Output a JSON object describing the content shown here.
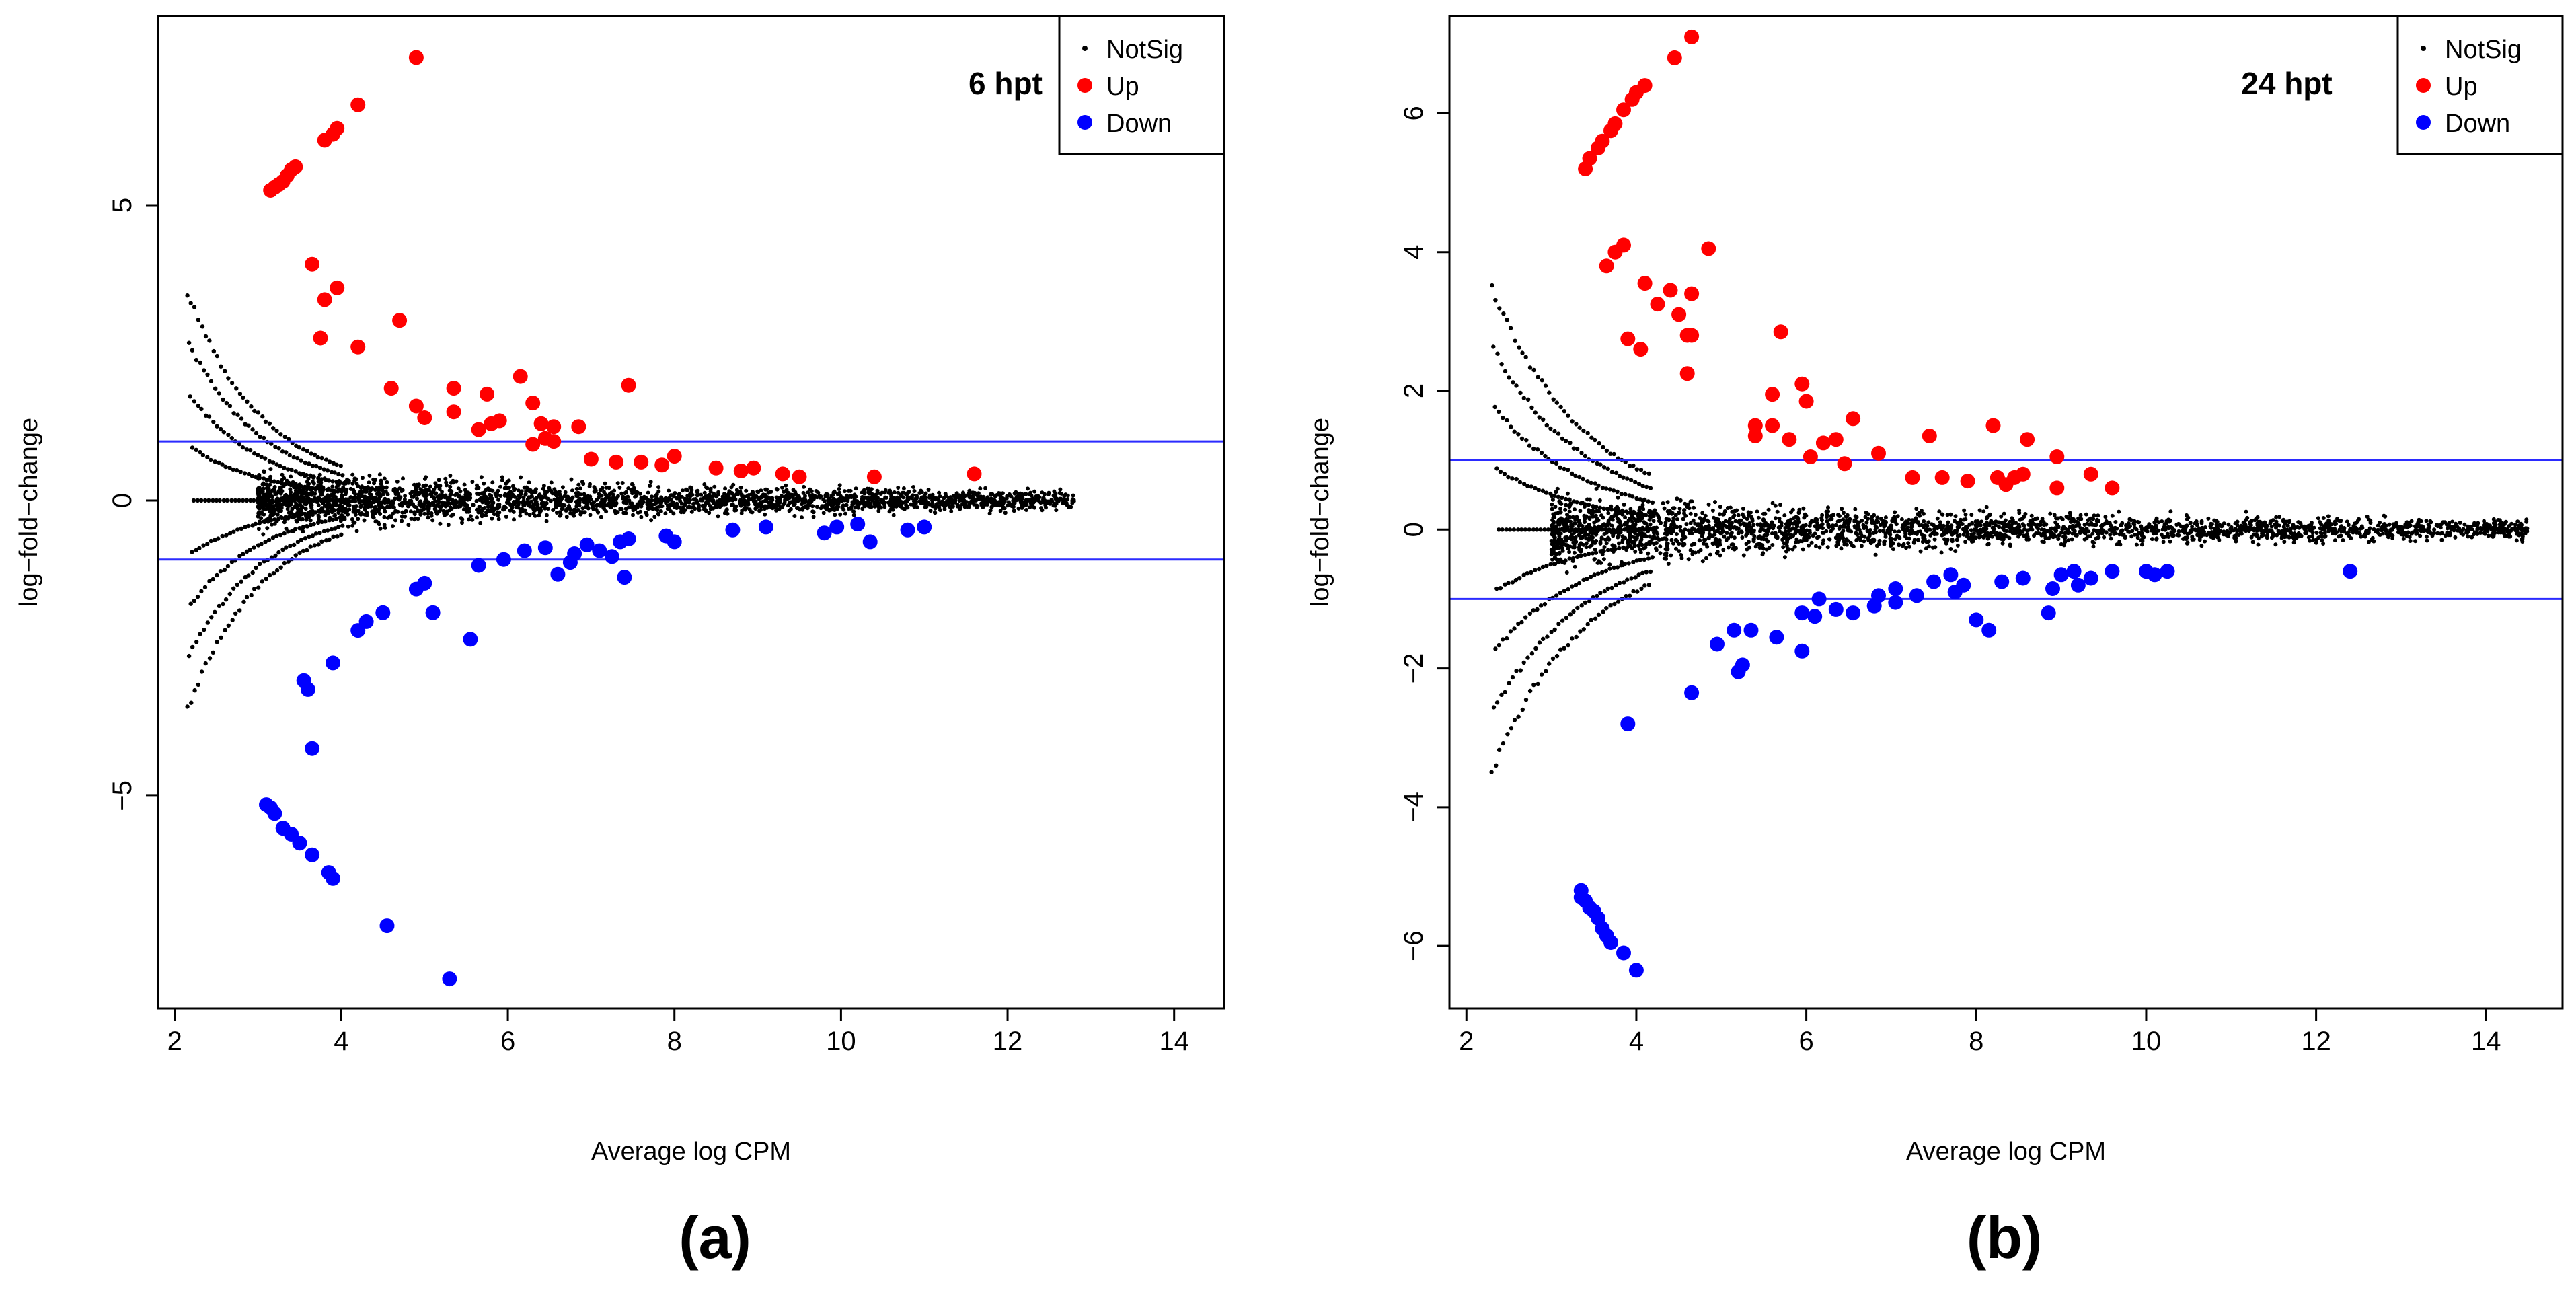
{
  "panels": [
    {
      "label": "(a)",
      "chart_data": {
        "type": "scatter",
        "title": "6 hpt",
        "xlabel": "Average log CPM",
        "ylabel": "log−fold−change",
        "xlim": [
          1.8,
          14.6
        ],
        "ylim": [
          -8.6,
          8.2
        ],
        "xticks": [
          "2",
          "4",
          "6",
          "8",
          "10",
          "12",
          "14"
        ],
        "xtick_values": [
          2,
          4,
          6,
          8,
          10,
          12,
          14
        ],
        "yticks": [
          "−5",
          "0",
          "5"
        ],
        "ytick_values": [
          -5,
          0,
          5
        ],
        "hlines": [
          1,
          -1
        ],
        "legend": {
          "position": "top-right",
          "entries": [
            "NotSig",
            "Up",
            "Down"
          ]
        },
        "notsig_envelope": {
          "x_start": 2.15,
          "x_end": 12.8,
          "upper_at_start": 3.4,
          "decay": 1.1,
          "floor": 0.22
        },
        "series": [
          {
            "name": "Up",
            "color": "#ff0000",
            "points": [
              [
                4.9,
                7.5
              ],
              [
                4.2,
                6.7
              ],
              [
                3.95,
                6.3
              ],
              [
                3.9,
                6.2
              ],
              [
                3.8,
                6.1
              ],
              [
                3.45,
                5.65
              ],
              [
                3.4,
                5.6
              ],
              [
                3.35,
                5.5
              ],
              [
                3.3,
                5.4
              ],
              [
                3.25,
                5.35
              ],
              [
                3.2,
                5.3
              ],
              [
                3.15,
                5.25
              ],
              [
                3.65,
                4.0
              ],
              [
                3.95,
                3.6
              ],
              [
                3.8,
                3.4
              ],
              [
                3.75,
                2.75
              ],
              [
                4.2,
                2.6
              ],
              [
                4.7,
                3.05
              ],
              [
                4.6,
                1.9
              ],
              [
                4.9,
                1.6
              ],
              [
                5.0,
                1.4
              ],
              [
                5.35,
                1.9
              ],
              [
                5.35,
                1.5
              ],
              [
                5.65,
                1.2
              ],
              [
                5.75,
                1.8
              ],
              [
                5.8,
                1.3
              ],
              [
                5.9,
                1.35
              ],
              [
                6.15,
                2.1
              ],
              [
                6.3,
                1.65
              ],
              [
                6.4,
                1.3
              ],
              [
                6.45,
                1.05
              ],
              [
                6.55,
                1.25
              ],
              [
                6.55,
                1.0
              ],
              [
                6.3,
                0.95
              ],
              [
                6.85,
                1.25
              ],
              [
                7.0,
                0.7
              ],
              [
                7.3,
                0.65
              ],
              [
                7.45,
                1.95
              ],
              [
                7.6,
                0.65
              ],
              [
                7.85,
                0.6
              ],
              [
                8.0,
                0.75
              ],
              [
                8.5,
                0.55
              ],
              [
                8.8,
                0.5
              ],
              [
                8.95,
                0.55
              ],
              [
                9.3,
                0.45
              ],
              [
                9.5,
                0.4
              ],
              [
                10.4,
                0.4
              ],
              [
                11.6,
                0.45
              ]
            ]
          },
          {
            "name": "Down",
            "color": "#0000ff",
            "points": [
              [
                5.3,
                -8.1
              ],
              [
                4.55,
                -7.2
              ],
              [
                3.9,
                -6.4
              ],
              [
                3.85,
                -6.3
              ],
              [
                3.65,
                -6.0
              ],
              [
                3.5,
                -5.8
              ],
              [
                3.4,
                -5.65
              ],
              [
                3.3,
                -5.55
              ],
              [
                3.2,
                -5.3
              ],
              [
                3.15,
                -5.2
              ],
              [
                3.1,
                -5.15
              ],
              [
                3.65,
                -4.2
              ],
              [
                3.6,
                -3.2
              ],
              [
                3.55,
                -3.05
              ],
              [
                3.9,
                -2.75
              ],
              [
                4.2,
                -2.2
              ],
              [
                4.3,
                -2.05
              ],
              [
                4.5,
                -1.9
              ],
              [
                4.9,
                -1.5
              ],
              [
                5.0,
                -1.4
              ],
              [
                5.1,
                -1.9
              ],
              [
                5.55,
                -2.35
              ],
              [
                5.65,
                -1.1
              ],
              [
                5.95,
                -1.0
              ],
              [
                6.2,
                -0.85
              ],
              [
                6.45,
                -0.8
              ],
              [
                6.6,
                -1.25
              ],
              [
                6.75,
                -1.05
              ],
              [
                6.8,
                -0.9
              ],
              [
                6.95,
                -0.75
              ],
              [
                7.1,
                -0.85
              ],
              [
                7.25,
                -0.95
              ],
              [
                7.35,
                -0.7
              ],
              [
                7.4,
                -1.3
              ],
              [
                7.45,
                -0.65
              ],
              [
                7.9,
                -0.6
              ],
              [
                8.0,
                -0.7
              ],
              [
                8.7,
                -0.5
              ],
              [
                9.1,
                -0.45
              ],
              [
                9.8,
                -0.55
              ],
              [
                9.95,
                -0.45
              ],
              [
                10.2,
                -0.4
              ],
              [
                10.35,
                -0.7
              ],
              [
                10.8,
                -0.5
              ],
              [
                11.0,
                -0.45
              ]
            ]
          }
        ]
      }
    },
    {
      "label": "(b)",
      "chart_data": {
        "type": "scatter",
        "title": "24 hpt",
        "xlabel": "Average log CPM",
        "ylabel": "log−fold−change",
        "xlim": [
          1.8,
          14.9
        ],
        "ylim": [
          -6.9,
          7.4
        ],
        "xticks": [
          "2",
          "4",
          "6",
          "8",
          "10",
          "12",
          "14"
        ],
        "xtick_values": [
          2,
          4,
          6,
          8,
          10,
          12,
          14
        ],
        "yticks": [
          "−6",
          "−4",
          "−2",
          "0",
          "2",
          "4",
          "6"
        ],
        "ytick_values": [
          -6,
          -4,
          -2,
          0,
          2,
          4,
          6
        ],
        "hlines": [
          1,
          -1
        ],
        "legend": {
          "position": "top-right",
          "entries": [
            "NotSig",
            "Up",
            "Down"
          ]
        },
        "notsig_envelope": {
          "x_start": 2.3,
          "x_end": 14.5,
          "upper_at_start": 3.3,
          "decay": 0.9,
          "floor": 0.28
        },
        "series": [
          {
            "name": "Up",
            "color": "#ff0000",
            "points": [
              [
                4.65,
                7.1
              ],
              [
                4.45,
                6.8
              ],
              [
                4.1,
                6.4
              ],
              [
                4.0,
                6.3
              ],
              [
                3.95,
                6.2
              ],
              [
                3.85,
                6.05
              ],
              [
                3.75,
                5.85
              ],
              [
                3.7,
                5.75
              ],
              [
                3.6,
                5.6
              ],
              [
                3.55,
                5.5
              ],
              [
                3.45,
                5.35
              ],
              [
                3.4,
                5.2
              ],
              [
                3.85,
                4.1
              ],
              [
                3.75,
                4.0
              ],
              [
                3.65,
                3.8
              ],
              [
                4.85,
                4.05
              ],
              [
                4.1,
                3.55
              ],
              [
                4.4,
                3.45
              ],
              [
                4.65,
                3.4
              ],
              [
                4.25,
                3.25
              ],
              [
                4.5,
                3.1
              ],
              [
                4.6,
                2.8
              ],
              [
                4.65,
                2.8
              ],
              [
                3.9,
                2.75
              ],
              [
                4.05,
                2.6
              ],
              [
                4.6,
                2.25
              ],
              [
                5.7,
                2.85
              ],
              [
                5.95,
                2.1
              ],
              [
                6.0,
                1.85
              ],
              [
                5.6,
                1.95
              ],
              [
                5.4,
                1.5
              ],
              [
                5.4,
                1.35
              ],
              [
                5.6,
                1.5
              ],
              [
                5.8,
                1.3
              ],
              [
                6.05,
                1.05
              ],
              [
                6.2,
                1.25
              ],
              [
                6.35,
                1.3
              ],
              [
                6.55,
                1.6
              ],
              [
                6.45,
                0.95
              ],
              [
                6.85,
                1.1
              ],
              [
                7.25,
                0.75
              ],
              [
                7.45,
                1.35
              ],
              [
                7.6,
                0.75
              ],
              [
                7.9,
                0.7
              ],
              [
                8.2,
                1.5
              ],
              [
                8.25,
                0.75
              ],
              [
                8.35,
                0.65
              ],
              [
                8.45,
                0.75
              ],
              [
                8.55,
                0.8
              ],
              [
                8.6,
                1.3
              ],
              [
                8.95,
                1.05
              ],
              [
                8.95,
                0.6
              ],
              [
                9.35,
                0.8
              ],
              [
                9.6,
                0.6
              ]
            ]
          },
          {
            "name": "Down",
            "color": "#0000ff",
            "points": [
              [
                4.0,
                -6.35
              ],
              [
                3.85,
                -6.1
              ],
              [
                3.7,
                -5.95
              ],
              [
                3.65,
                -5.85
              ],
              [
                3.6,
                -5.75
              ],
              [
                3.55,
                -5.6
              ],
              [
                3.5,
                -5.5
              ],
              [
                3.45,
                -5.45
              ],
              [
                3.4,
                -5.35
              ],
              [
                3.35,
                -5.3
              ],
              [
                3.35,
                -5.2
              ],
              [
                3.9,
                -2.8
              ],
              [
                4.65,
                -2.35
              ],
              [
                5.25,
                -1.95
              ],
              [
                5.2,
                -2.05
              ],
              [
                4.95,
                -1.65
              ],
              [
                5.15,
                -1.45
              ],
              [
                5.35,
                -1.45
              ],
              [
                5.65,
                -1.55
              ],
              [
                5.95,
                -1.75
              ],
              [
                5.95,
                -1.2
              ],
              [
                6.1,
                -1.25
              ],
              [
                6.15,
                -1.0
              ],
              [
                6.35,
                -1.15
              ],
              [
                6.55,
                -1.2
              ],
              [
                6.8,
                -1.1
              ],
              [
                6.85,
                -0.95
              ],
              [
                7.05,
                -1.05
              ],
              [
                7.05,
                -0.85
              ],
              [
                7.3,
                -0.95
              ],
              [
                7.5,
                -0.75
              ],
              [
                7.7,
                -0.65
              ],
              [
                7.75,
                -0.9
              ],
              [
                7.85,
                -0.8
              ],
              [
                8.0,
                -1.3
              ],
              [
                8.15,
                -1.45
              ],
              [
                8.3,
                -0.75
              ],
              [
                8.55,
                -0.7
              ],
              [
                8.85,
                -1.2
              ],
              [
                8.9,
                -0.85
              ],
              [
                9.0,
                -0.65
              ],
              [
                9.15,
                -0.6
              ],
              [
                9.2,
                -0.8
              ],
              [
                9.35,
                -0.7
              ],
              [
                9.6,
                -0.6
              ],
              [
                10.0,
                -0.6
              ],
              [
                10.1,
                -0.65
              ],
              [
                10.25,
                -0.6
              ],
              [
                12.4,
                -0.6
              ]
            ]
          }
        ]
      }
    }
  ]
}
